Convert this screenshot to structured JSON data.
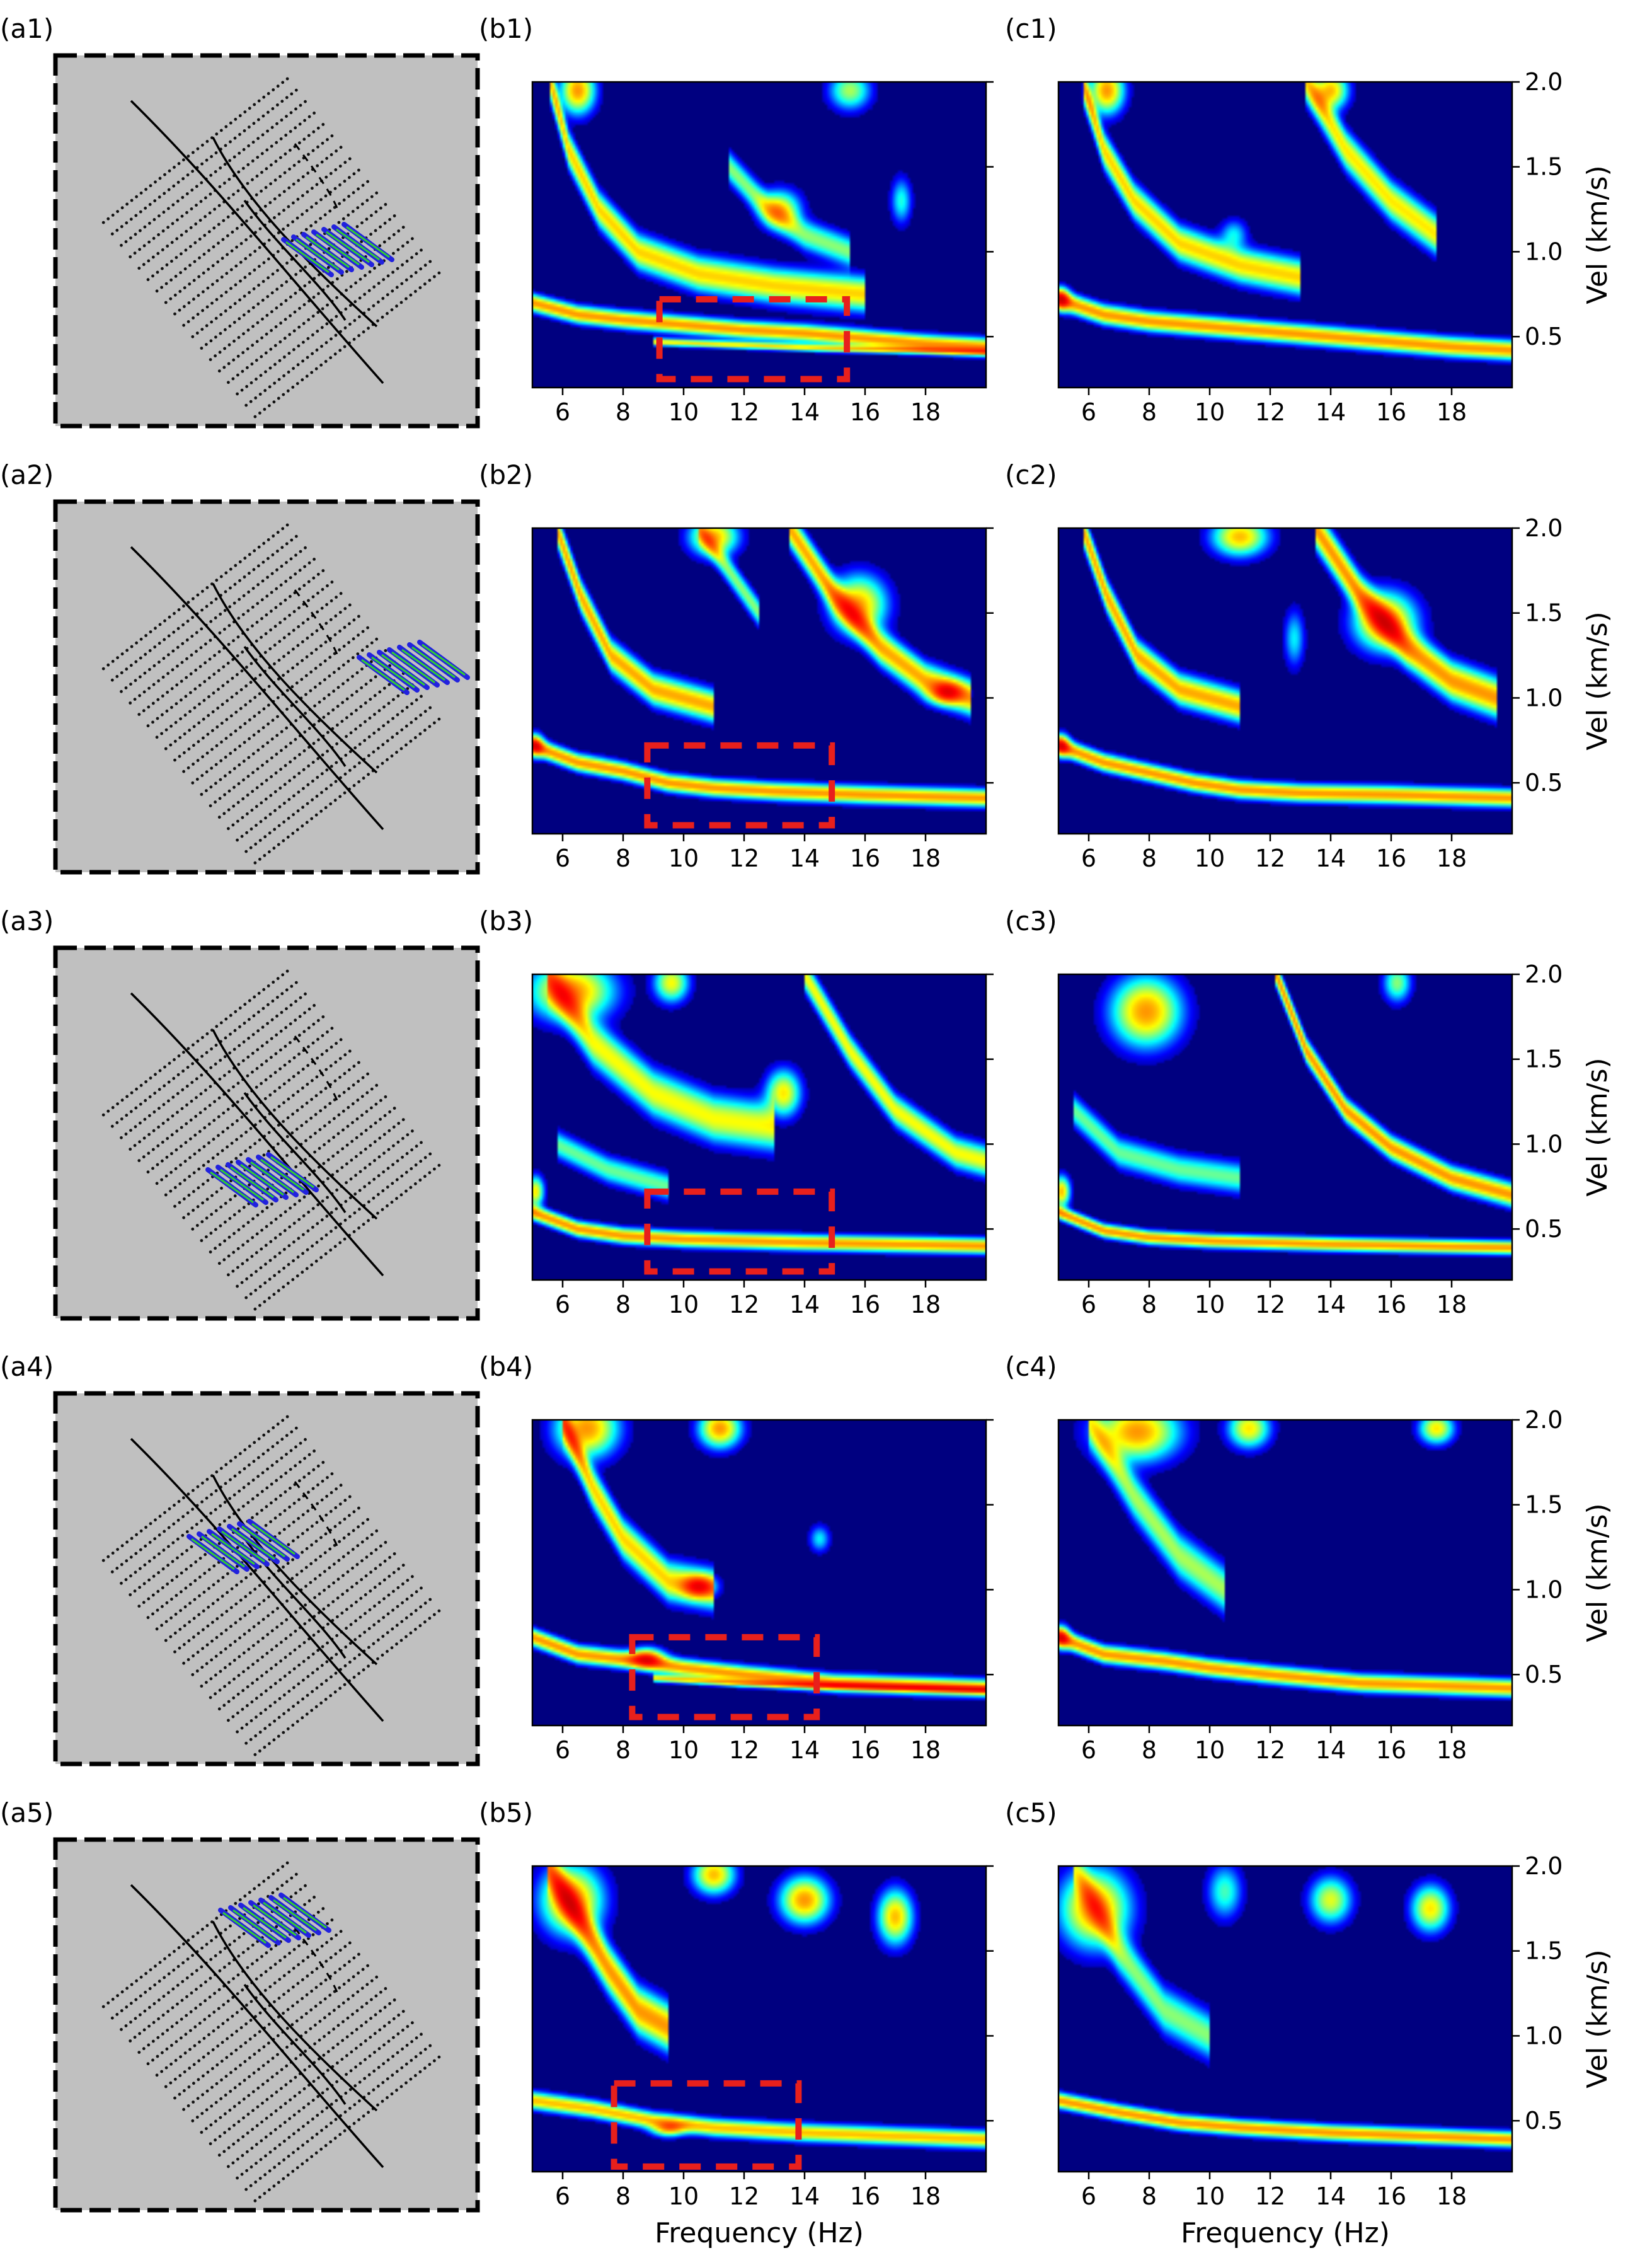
{
  "figure": {
    "rows": [
      {
        "labels": {
          "a": "(a1)",
          "b": "(b1)",
          "c": "(c1)"
        }
      },
      {
        "labels": {
          "a": "(a2)",
          "b": "(b2)",
          "c": "(c2)"
        }
      },
      {
        "labels": {
          "a": "(a3)",
          "b": "(b3)",
          "c": "(c3)"
        }
      },
      {
        "labels": {
          "a": "(a4)",
          "b": "(b4)",
          "c": "(c4)"
        }
      },
      {
        "labels": {
          "a": "(a5)",
          "b": "(b5)",
          "c": "(c5)"
        }
      }
    ]
  },
  "chart_data": {
    "type": "heatmap",
    "colormap": "jet",
    "xlabel": "Frequency (Hz)",
    "ylabel": "Vel (km/s)",
    "xlim": [
      5,
      20
    ],
    "ylim": [
      0.2,
      2.0
    ],
    "x_ticks": [
      6,
      8,
      10,
      12,
      14,
      16,
      18
    ],
    "y_ticks": [
      0.5,
      1.0,
      1.5,
      2.0
    ],
    "x_tick_labels": [
      "6",
      "8",
      "10",
      "12",
      "14",
      "16",
      "18"
    ],
    "y_tick_labels": [
      "0.5",
      "1.0",
      "1.5",
      "2.0"
    ],
    "highlight_box_color": "#e8201c",
    "panels": [
      {
        "row": 1,
        "column": "b",
        "highlight_box": {
          "f": [
            9.2,
            15.4
          ],
          "v": [
            0.25,
            0.72
          ]
        },
        "ridges": [
          {
            "f": [
              5,
              6.5,
              8,
              10,
              12,
              14,
              16,
              18,
              20
            ],
            "v": [
              0.7,
              0.63,
              0.6,
              0.57,
              0.54,
              0.52,
              0.49,
              0.46,
              0.44
            ],
            "w": 0.045,
            "amp": 1.0
          },
          {
            "f": [
              9,
              12,
              15,
              18,
              20
            ],
            "v": [
              0.47,
              0.45,
              0.43,
              0.42,
              0.41
            ],
            "w": 0.02,
            "amp": 0.8
          },
          {
            "f": [
              5.6,
              6.2,
              7.2,
              8.5,
              10.5,
              13,
              16
            ],
            "v": [
              2.0,
              1.6,
              1.25,
              1.0,
              0.87,
              0.8,
              0.75
            ],
            "w": 0.09,
            "amp": 0.85
          },
          {
            "f": [
              11.5,
              12.8,
              14,
              15.5
            ],
            "v": [
              1.5,
              1.25,
              1.1,
              1.0
            ],
            "w": 0.08,
            "amp": 0.55
          }
        ],
        "blobs": [
          {
            "f": 6.5,
            "v": 1.95,
            "sf": 0.5,
            "sv": 0.12,
            "amp": 1.0
          },
          {
            "f": 13.2,
            "v": 1.25,
            "sf": 0.6,
            "sv": 0.1,
            "amp": 0.7
          },
          {
            "f": 15.5,
            "v": 1.95,
            "sf": 0.6,
            "sv": 0.1,
            "amp": 0.6
          },
          {
            "f": 17.2,
            "v": 1.3,
            "sf": 0.3,
            "sv": 0.12,
            "amp": 0.4
          }
        ]
      },
      {
        "row": 1,
        "column": "c",
        "highlight_box": null,
        "ridges": [
          {
            "f": [
              5,
              6.5,
              8,
              10,
              12,
              14,
              16,
              18,
              20
            ],
            "v": [
              0.72,
              0.63,
              0.59,
              0.56,
              0.53,
              0.5,
              0.47,
              0.44,
              0.42
            ],
            "w": 0.05,
            "amp": 1.0
          },
          {
            "f": [
              5.8,
              6.5,
              7.5,
              9,
              11,
              13
            ],
            "v": [
              2.0,
              1.6,
              1.3,
              1.05,
              0.92,
              0.85
            ],
            "w": 0.09,
            "amp": 0.85
          },
          {
            "f": [
              13.2,
              14.5,
              16,
              17.5
            ],
            "v": [
              2.0,
              1.6,
              1.3,
              1.1
            ],
            "w": 0.1,
            "amp": 0.8
          }
        ],
        "blobs": [
          {
            "f": 6.6,
            "v": 1.95,
            "sf": 0.5,
            "sv": 0.12,
            "amp": 1.0
          },
          {
            "f": 14,
            "v": 1.95,
            "sf": 0.5,
            "sv": 0.1,
            "amp": 0.9
          },
          {
            "f": 10.8,
            "v": 1.1,
            "sf": 0.4,
            "sv": 0.08,
            "amp": 0.35
          },
          {
            "f": 5.1,
            "v": 0.72,
            "sf": 0.25,
            "sv": 0.06,
            "amp": 1.0
          }
        ]
      },
      {
        "row": 2,
        "column": "b",
        "highlight_box": {
          "f": [
            8.8,
            14.9
          ],
          "v": [
            0.25,
            0.72
          ]
        },
        "ridges": [
          {
            "f": [
              5,
              6.5,
              8,
              9.5,
              11,
              13,
              16,
              20
            ],
            "v": [
              0.72,
              0.62,
              0.57,
              0.5,
              0.47,
              0.45,
              0.43,
              0.41
            ],
            "w": 0.045,
            "amp": 1.0
          },
          {
            "f": [
              5.8,
              6.6,
              7.6,
              9,
              11
            ],
            "v": [
              2.0,
              1.6,
              1.25,
              1.05,
              0.95
            ],
            "w": 0.08,
            "amp": 0.95
          },
          {
            "f": [
              13.5,
              15,
              16.5,
              18,
              19.5
            ],
            "v": [
              2.0,
              1.6,
              1.3,
              1.1,
              1.0
            ],
            "w": 0.09,
            "amp": 0.95
          },
          {
            "f": [
              10.5,
              11.5,
              12.5
            ],
            "v": [
              2.0,
              1.75,
              1.5
            ],
            "w": 0.07,
            "amp": 0.55
          }
        ],
        "blobs": [
          {
            "f": 15.8,
            "v": 1.55,
            "sf": 0.8,
            "sv": 0.15,
            "amp": 0.9
          },
          {
            "f": 18.7,
            "v": 1.03,
            "sf": 0.5,
            "sv": 0.06,
            "amp": 0.9
          },
          {
            "f": 11,
            "v": 1.95,
            "sf": 0.7,
            "sv": 0.1,
            "amp": 0.9
          },
          {
            "f": 5.1,
            "v": 0.72,
            "sf": 0.25,
            "sv": 0.06,
            "amp": 0.9
          }
        ]
      },
      {
        "row": 2,
        "column": "c",
        "highlight_box": null,
        "ridges": [
          {
            "f": [
              5,
              6.5,
              8,
              9.5,
              11,
              13,
              16,
              20
            ],
            "v": [
              0.72,
              0.62,
              0.56,
              0.5,
              0.46,
              0.44,
              0.43,
              0.41
            ],
            "w": 0.045,
            "amp": 1.0
          },
          {
            "f": [
              5.8,
              6.6,
              7.6,
              9,
              11
            ],
            "v": [
              2.0,
              1.6,
              1.25,
              1.05,
              0.95
            ],
            "w": 0.08,
            "amp": 0.95
          },
          {
            "f": [
              13.5,
              15,
              16.5,
              18,
              19.5
            ],
            "v": [
              2.0,
              1.6,
              1.3,
              1.1,
              1.0
            ],
            "w": 0.1,
            "amp": 1.0
          }
        ],
        "blobs": [
          {
            "f": 15.8,
            "v": 1.45,
            "sf": 0.9,
            "sv": 0.15,
            "amp": 1.0
          },
          {
            "f": 11,
            "v": 1.95,
            "sf": 0.8,
            "sv": 0.1,
            "amp": 0.9
          },
          {
            "f": 12.8,
            "v": 1.35,
            "sf": 0.3,
            "sv": 0.15,
            "amp": 0.35
          },
          {
            "f": 5.1,
            "v": 0.72,
            "sf": 0.25,
            "sv": 0.06,
            "amp": 0.9
          }
        ]
      },
      {
        "row": 3,
        "column": "b",
        "highlight_box": {
          "f": [
            8.8,
            14.9
          ],
          "v": [
            0.25,
            0.72
          ]
        },
        "ridges": [
          {
            "f": [
              5,
              6.5,
              8,
              10,
              12,
              14,
              17,
              20
            ],
            "v": [
              0.6,
              0.5,
              0.46,
              0.44,
              0.43,
              0.42,
              0.41,
              0.4
            ],
            "w": 0.04,
            "amp": 1.0
          },
          {
            "f": [
              5.5,
              7,
              9,
              11,
              13
            ],
            "v": [
              2.0,
              1.6,
              1.3,
              1.15,
              1.1
            ],
            "w": 0.12,
            "amp": 0.75
          },
          {
            "f": [
              14,
              15.5,
              17,
              19,
              20
            ],
            "v": [
              2.0,
              1.55,
              1.2,
              0.95,
              0.9
            ],
            "w": 0.08,
            "amp": 0.75
          },
          {
            "f": [
              5.8,
              7.5,
              9.5
            ],
            "v": [
              1.0,
              0.85,
              0.75
            ],
            "w": 0.07,
            "amp": 0.5
          }
        ],
        "blobs": [
          {
            "f": 6.3,
            "v": 1.9,
            "sf": 1.2,
            "sv": 0.15,
            "amp": 1.0
          },
          {
            "f": 13.3,
            "v": 1.3,
            "sf": 0.5,
            "sv": 0.12,
            "amp": 0.8
          },
          {
            "f": 9.6,
            "v": 1.95,
            "sf": 0.5,
            "sv": 0.1,
            "amp": 0.75
          },
          {
            "f": 5.1,
            "v": 0.72,
            "sf": 0.25,
            "sv": 0.08,
            "amp": 0.8
          }
        ]
      },
      {
        "row": 3,
        "column": "c",
        "highlight_box": null,
        "ridges": [
          {
            "f": [
              5,
              6.5,
              8,
              10,
              12,
              14,
              17,
              20
            ],
            "v": [
              0.6,
              0.49,
              0.45,
              0.43,
              0.42,
              0.41,
              0.4,
              0.39
            ],
            "w": 0.035,
            "amp": 1.0
          },
          {
            "f": [
              12.2,
              13.2,
              14.5,
              16,
              18,
              20
            ],
            "v": [
              2.0,
              1.55,
              1.2,
              0.98,
              0.8,
              0.7
            ],
            "w": 0.06,
            "amp": 1.0
          },
          {
            "f": [
              5.5,
              7,
              9,
              11
            ],
            "v": [
              1.2,
              0.95,
              0.85,
              0.8
            ],
            "w": 0.08,
            "amp": 0.5
          }
        ],
        "blobs": [
          {
            "f": 7.9,
            "v": 1.78,
            "sf": 1.0,
            "sv": 0.18,
            "amp": 1.0
          },
          {
            "f": 16.2,
            "v": 1.95,
            "sf": 0.4,
            "sv": 0.1,
            "amp": 0.55
          },
          {
            "f": 5.1,
            "v": 0.72,
            "sf": 0.25,
            "sv": 0.08,
            "amp": 0.9
          }
        ]
      },
      {
        "row": 4,
        "column": "b",
        "highlight_box": {
          "f": [
            8.3,
            14.4
          ],
          "v": [
            0.25,
            0.72
          ]
        },
        "ridges": [
          {
            "f": [
              5,
              6.5,
              8.5,
              10,
              12,
              15,
              20
            ],
            "v": [
              0.72,
              0.62,
              0.58,
              0.54,
              0.5,
              0.45,
              0.42
            ],
            "w": 0.045,
            "amp": 1.0
          },
          {
            "f": [
              9,
              12,
              16,
              20
            ],
            "v": [
              0.48,
              0.45,
              0.43,
              0.41
            ],
            "w": 0.02,
            "amp": 0.8
          },
          {
            "f": [
              6,
              7,
              8,
              9.5,
              11
            ],
            "v": [
              2.0,
              1.6,
              1.3,
              1.05,
              1.0
            ],
            "w": 0.1,
            "amp": 0.85
          }
        ],
        "blobs": [
          {
            "f": 8.8,
            "v": 0.6,
            "sf": 0.5,
            "sv": 0.05,
            "amp": 1.0
          },
          {
            "f": 6.8,
            "v": 1.95,
            "sf": 0.9,
            "sv": 0.15,
            "amp": 1.0
          },
          {
            "f": 11.2,
            "v": 1.95,
            "sf": 0.6,
            "sv": 0.1,
            "amp": 1.0
          },
          {
            "f": 10.5,
            "v": 1.02,
            "sf": 0.5,
            "sv": 0.06,
            "amp": 0.9
          },
          {
            "f": 14.5,
            "v": 1.3,
            "sf": 0.3,
            "sv": 0.07,
            "amp": 0.35
          }
        ]
      },
      {
        "row": 4,
        "column": "c",
        "highlight_box": null,
        "ridges": [
          {
            "f": [
              5,
              6.5,
              8.5,
              10,
              12,
              15,
              20
            ],
            "v": [
              0.72,
              0.62,
              0.58,
              0.54,
              0.5,
              0.45,
              0.42
            ],
            "w": 0.045,
            "amp": 1.0
          },
          {
            "f": [
              6,
              7.5,
              9,
              10.5
            ],
            "v": [
              2.0,
              1.55,
              1.2,
              1.0
            ],
            "w": 0.12,
            "amp": 0.6
          }
        ],
        "blobs": [
          {
            "f": 7.6,
            "v": 1.93,
            "sf": 1.2,
            "sv": 0.15,
            "amp": 1.0
          },
          {
            "f": 11.3,
            "v": 1.95,
            "sf": 0.6,
            "sv": 0.1,
            "amp": 0.8
          },
          {
            "f": 17.5,
            "v": 1.95,
            "sf": 0.5,
            "sv": 0.08,
            "amp": 0.8
          },
          {
            "f": 5.1,
            "v": 0.72,
            "sf": 0.25,
            "sv": 0.06,
            "amp": 0.9
          }
        ]
      },
      {
        "row": 5,
        "column": "b",
        "highlight_box": {
          "f": [
            7.7,
            13.8
          ],
          "v": [
            0.23,
            0.72
          ]
        },
        "ridges": [
          {
            "f": [
              5,
              7,
              9,
              11,
              14,
              17,
              20
            ],
            "v": [
              0.62,
              0.57,
              0.5,
              0.46,
              0.43,
              0.41,
              0.39
            ],
            "w": 0.045,
            "amp": 0.9
          },
          {
            "f": [
              5.5,
              6.5,
              7.5,
              8.5,
              9.5
            ],
            "v": [
              2.0,
              1.7,
              1.4,
              1.15,
              1.05
            ],
            "w": 0.12,
            "amp": 1.0
          }
        ],
        "blobs": [
          {
            "f": 6.3,
            "v": 1.8,
            "sf": 0.9,
            "sv": 0.18,
            "amp": 1.0
          },
          {
            "f": 11,
            "v": 1.95,
            "sf": 0.6,
            "sv": 0.1,
            "amp": 0.9
          },
          {
            "f": 14,
            "v": 1.8,
            "sf": 0.7,
            "sv": 0.12,
            "amp": 1.0
          },
          {
            "f": 17,
            "v": 1.7,
            "sf": 0.5,
            "sv": 0.14,
            "amp": 0.9
          },
          {
            "f": 9.5,
            "v": 0.45,
            "sf": 0.5,
            "sv": 0.04,
            "amp": 0.7
          }
        ]
      },
      {
        "row": 5,
        "column": "c",
        "highlight_box": null,
        "ridges": [
          {
            "f": [
              5,
              7,
              9,
              11,
              14,
              17,
              20
            ],
            "v": [
              0.62,
              0.55,
              0.49,
              0.46,
              0.43,
              0.41,
              0.39
            ],
            "w": 0.04,
            "amp": 1.0
          },
          {
            "f": [
              5.5,
              7,
              8.5,
              10
            ],
            "v": [
              2.0,
              1.5,
              1.15,
              1.0
            ],
            "w": 0.12,
            "amp": 0.55
          }
        ],
        "blobs": [
          {
            "f": 6.2,
            "v": 1.75,
            "sf": 1.0,
            "sv": 0.2,
            "amp": 1.0
          },
          {
            "f": 10.5,
            "v": 1.85,
            "sf": 0.5,
            "sv": 0.14,
            "amp": 0.45
          },
          {
            "f": 14,
            "v": 1.8,
            "sf": 0.6,
            "sv": 0.12,
            "amp": 0.7
          },
          {
            "f": 17.3,
            "v": 1.75,
            "sf": 0.55,
            "sv": 0.12,
            "amp": 0.8
          }
        ]
      }
    ]
  }
}
